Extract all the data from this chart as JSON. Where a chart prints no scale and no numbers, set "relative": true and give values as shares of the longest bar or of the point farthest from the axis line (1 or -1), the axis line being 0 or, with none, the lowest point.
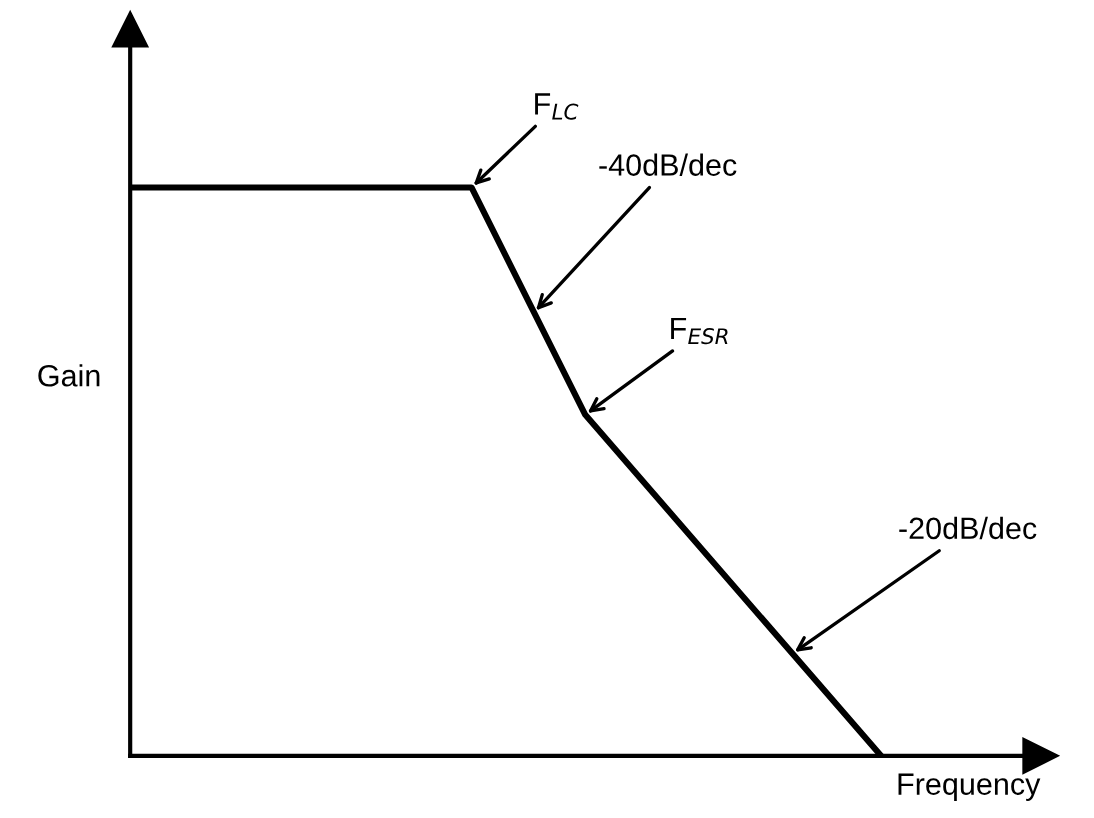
{
  "chart_data": {
    "type": "line",
    "relative": true,
    "xlabel": "Frequency",
    "ylabel": "Gain",
    "categories": [
      null,
      null,
      null,
      null,
      null,
      null,
      null,
      null,
      null,
      null,
      null,
      null,
      null,
      null,
      null,
      null,
      null,
      null,
      null,
      null,
      null,
      null,
      null,
      null,
      null,
      null,
      null,
      null,
      null,
      null,
      null,
      null,
      null,
      null
    ],
    "marker": "none",
    "line_style": "solid",
    "series": [
      {
        "color": "#000000",
        "values": [
          1,
          null,
          null,
          null,
          null,
          null,
          null,
          null,
          null,
          null,
          null,
          null,
          null,
          null,
          null,
          1,
          null,
          null,
          null,
          null,
          0.6,
          null,
          null,
          null,
          null,
          null,
          null,
          null,
          null,
          null,
          null,
          null,
          null,
          0
        ]
      }
    ],
    "annotations": [
      "F$_{LC}$",
      "-40dB/dec",
      "F$_{ESR}$",
      "-20dB/dec"
    ]
  }
}
